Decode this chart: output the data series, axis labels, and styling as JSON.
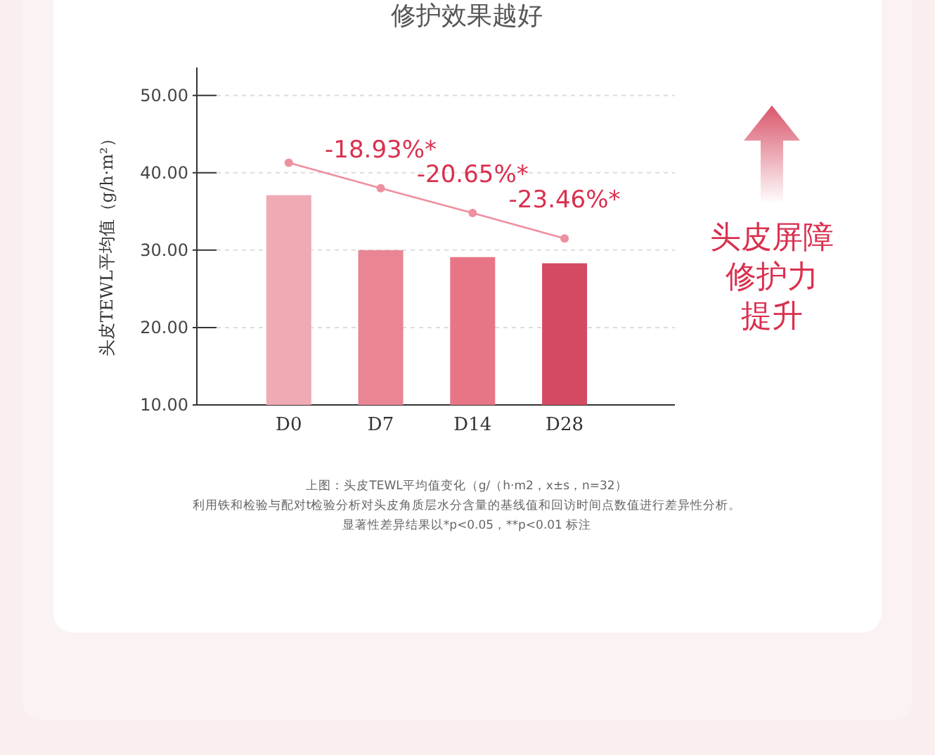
{
  "chart_data": {
    "type": "bar",
    "title": "修护效果越好",
    "ylabel": "头皮TEWL平均值（g/h·m²）",
    "categories": [
      "D0",
      "D7",
      "D14",
      "D28"
    ],
    "series": [
      {
        "colors": [
          "#f0aab4",
          "#e98595",
          "#e77585",
          "#d44a63"
        ],
        "values": [
          37.1,
          30.0,
          29.1,
          28.3
        ]
      },
      {
        "type": "line",
        "color": "#ef8f9f",
        "values": [
          41.3,
          38.0,
          34.8,
          31.5
        ]
      }
    ],
    "marker": "circle",
    "ylim": [
      10,
      53.6
    ],
    "yticks": [
      {
        "value": 10,
        "label": "10.00"
      },
      {
        "value": 20,
        "label": "20.00"
      },
      {
        "value": 30,
        "label": "30.00"
      },
      {
        "value": 40,
        "label": "40.00"
      },
      {
        "value": 50,
        "label": "50.00"
      }
    ],
    "grid": "y",
    "annotations": [
      {
        "text": "-18.93%*",
        "x": "D7",
        "y": 38.0
      },
      {
        "text": "-20.65%*",
        "x": "D14",
        "y": 34.8
      },
      {
        "text": "-23.46%*",
        "x": "D28",
        "y": 31.5
      },
      "头皮屏障修护力提升",
      "上图：头皮TEWL平均值变化（g/（h·m2，x±s，n=32）",
      "利用铁和检验与配对t检验分析对头皮角质层水分含量的基线值和回访时间点数值进行差异性分析。",
      "显著性差异结果以*p<0.05，**p<0.01 标注"
    ]
  }
}
